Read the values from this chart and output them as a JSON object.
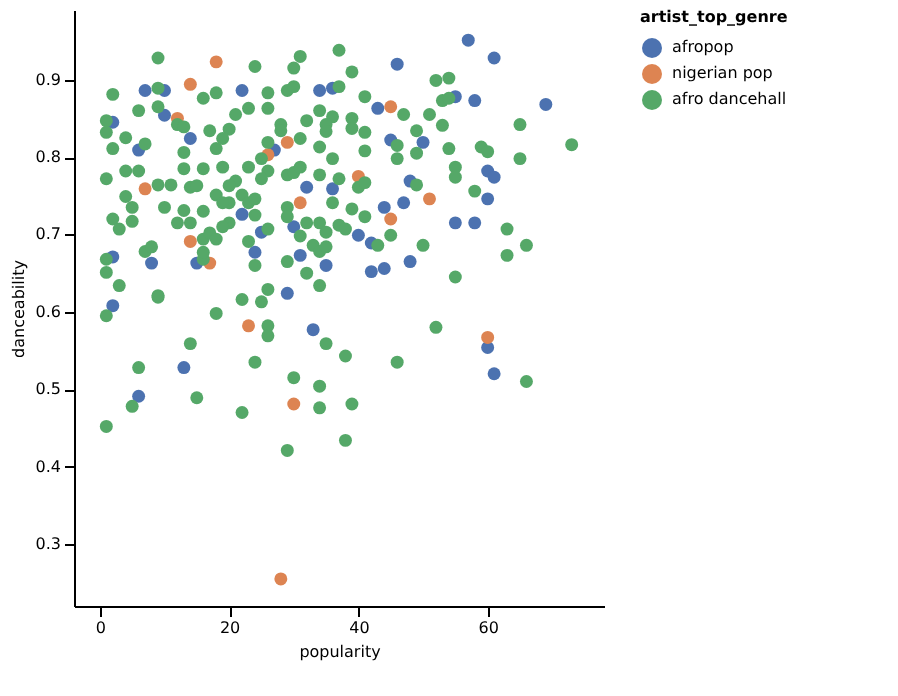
{
  "chart_data": {
    "type": "scatter",
    "xlabel": "popularity",
    "ylabel": "danceability",
    "legend_title": "artist_top_genre",
    "legend": "right",
    "grid": false,
    "xlim": [
      -4,
      78
    ],
    "ylim": [
      0.22,
      0.99
    ],
    "xticks": [
      0,
      20,
      40,
      60
    ],
    "yticks": [
      0.3,
      0.4,
      0.5,
      0.6,
      0.7,
      0.8,
      0.9
    ],
    "series": [
      {
        "name": "afropop",
        "color": "#4c72b0",
        "x": [
          57,
          61,
          46,
          69,
          7,
          10,
          22,
          34,
          36,
          55,
          58,
          43,
          10,
          2,
          14,
          6,
          27,
          45,
          50,
          32,
          36,
          48,
          60,
          61,
          60,
          44,
          47,
          22,
          30,
          55,
          58,
          40,
          42,
          25,
          15,
          8,
          2,
          24,
          35,
          42,
          44,
          48,
          31,
          29,
          33,
          13,
          6,
          60,
          61,
          2
        ],
        "values": [
          0.951,
          0.928,
          0.92,
          0.868,
          0.886,
          0.886,
          0.886,
          0.886,
          0.889,
          0.878,
          0.873,
          0.863,
          0.854,
          0.845,
          0.824,
          0.809,
          0.809,
          0.822,
          0.819,
          0.761,
          0.759,
          0.769,
          0.782,
          0.774,
          0.746,
          0.735,
          0.741,
          0.726,
          0.71,
          0.715,
          0.715,
          0.699,
          0.689,
          0.703,
          0.663,
          0.663,
          0.671,
          0.677,
          0.66,
          0.652,
          0.656,
          0.665,
          0.673,
          0.624,
          0.577,
          0.528,
          0.491,
          0.554,
          0.52,
          0.608
        ]
      },
      {
        "name": "nigerian pop",
        "color": "#dd8452",
        "x": [
          18,
          14,
          45,
          12,
          29,
          26,
          7,
          40,
          51,
          31,
          45,
          14,
          17,
          23,
          60,
          30,
          28
        ],
        "values": [
          0.923,
          0.894,
          0.865,
          0.85,
          0.819,
          0.803,
          0.759,
          0.775,
          0.746,
          0.741,
          0.72,
          0.691,
          0.663,
          0.582,
          0.567,
          0.481,
          0.255
        ]
      },
      {
        "name": "afro dancehall",
        "color": "#55a868",
        "x": [
          9,
          37,
          24,
          30,
          31,
          39,
          52,
          54,
          2,
          9,
          18,
          16,
          26,
          29,
          30,
          37,
          41,
          53,
          54,
          6,
          9,
          23,
          26,
          34,
          21,
          32,
          36,
          39,
          47,
          51,
          65,
          1,
          1,
          12,
          13,
          17,
          20,
          28,
          35,
          39,
          35,
          49,
          53,
          4,
          2,
          7,
          13,
          18,
          19,
          26,
          28,
          31,
          34,
          41,
          41,
          46,
          49,
          54,
          59,
          60,
          73,
          65,
          25,
          36,
          46,
          1,
          4,
          6,
          13,
          16,
          19,
          21,
          23,
          26,
          29,
          30,
          31,
          34,
          37,
          40,
          41,
          49,
          55,
          55,
          58,
          9,
          11,
          14,
          15,
          20,
          25,
          18,
          20,
          22,
          23,
          24,
          4,
          5,
          10,
          13,
          16,
          19,
          29,
          36,
          39,
          41,
          2,
          3,
          5,
          12,
          14,
          20,
          24,
          26,
          29,
          32,
          34,
          35,
          37,
          38,
          45,
          50,
          63,
          66,
          63,
          7,
          8,
          16,
          17,
          19,
          23,
          31,
          33,
          34,
          35,
          1,
          1,
          3,
          9,
          16,
          24,
          26,
          29,
          32,
          34,
          43,
          55,
          16,
          18,
          9,
          22,
          25,
          1,
          18,
          26,
          26,
          14,
          35,
          38,
          52,
          46,
          24,
          6,
          30,
          34,
          66,
          15,
          5,
          22,
          34,
          39,
          1,
          38,
          29
        ],
        "values": [
          0.928,
          0.938,
          0.917,
          0.915,
          0.93,
          0.91,
          0.899,
          0.902,
          0.881,
          0.889,
          0.883,
          0.876,
          0.883,
          0.886,
          0.891,
          0.891,
          0.878,
          0.873,
          0.876,
          0.86,
          0.865,
          0.863,
          0.863,
          0.86,
          0.855,
          0.847,
          0.852,
          0.85,
          0.855,
          0.855,
          0.842,
          0.847,
          0.832,
          0.842,
          0.839,
          0.834,
          0.836,
          0.842,
          0.842,
          0.837,
          0.833,
          0.834,
          0.841,
          0.825,
          0.811,
          0.817,
          0.806,
          0.811,
          0.824,
          0.819,
          0.834,
          0.824,
          0.813,
          0.832,
          0.808,
          0.815,
          0.805,
          0.811,
          0.813,
          0.807,
          0.816,
          0.798,
          0.798,
          0.798,
          0.798,
          0.772,
          0.782,
          0.782,
          0.785,
          0.785,
          0.787,
          0.769,
          0.787,
          0.782,
          0.777,
          0.78,
          0.787,
          0.777,
          0.772,
          0.761,
          0.767,
          0.764,
          0.787,
          0.774,
          0.756,
          0.764,
          0.764,
          0.761,
          0.763,
          0.763,
          0.772,
          0.751,
          0.741,
          0.751,
          0.741,
          0.746,
          0.749,
          0.735,
          0.735,
          0.731,
          0.73,
          0.741,
          0.735,
          0.741,
          0.733,
          0.723,
          0.72,
          0.707,
          0.717,
          0.715,
          0.715,
          0.715,
          0.725,
          0.707,
          0.723,
          0.715,
          0.715,
          0.703,
          0.712,
          0.707,
          0.699,
          0.686,
          0.707,
          0.686,
          0.673,
          0.678,
          0.684,
          0.694,
          0.702,
          0.71,
          0.691,
          0.698,
          0.686,
          0.678,
          0.684,
          0.668,
          0.651,
          0.634,
          0.621,
          0.668,
          0.66,
          0.629,
          0.665,
          0.65,
          0.634,
          0.686,
          0.645,
          0.677,
          0.694,
          0.619,
          0.616,
          0.613,
          0.595,
          0.598,
          0.582,
          0.569,
          0.559,
          0.559,
          0.543,
          0.58,
          0.535,
          0.535,
          0.528,
          0.515,
          0.504,
          0.51,
          0.489,
          0.478,
          0.47,
          0.476,
          0.481,
          0.452,
          0.434,
          0.421
        ]
      }
    ]
  }
}
